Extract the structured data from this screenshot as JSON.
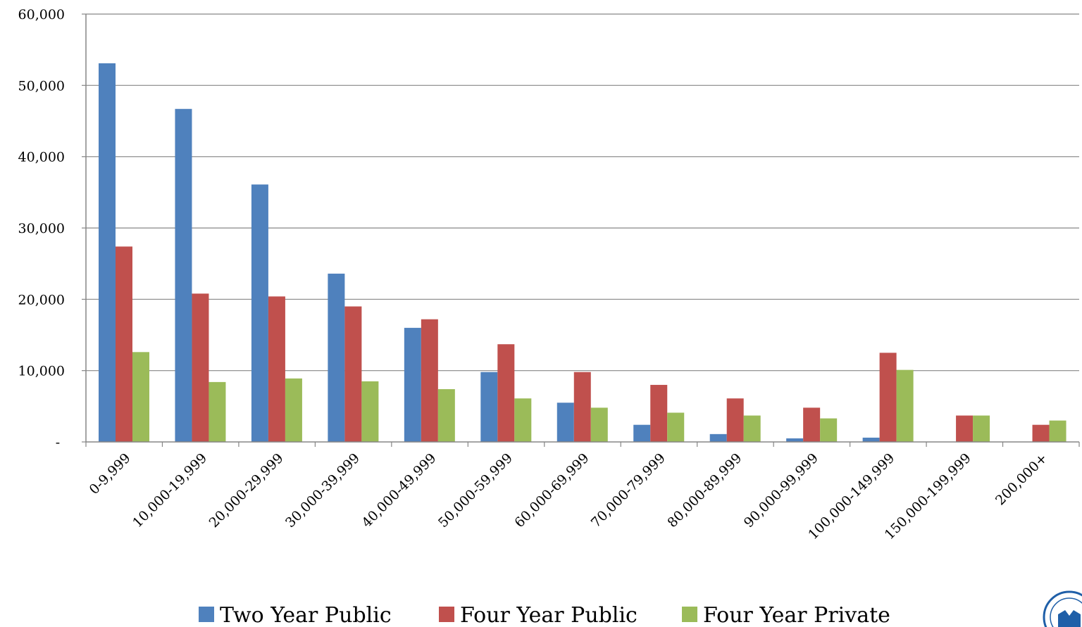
{
  "chart_data": {
    "type": "bar",
    "title": "",
    "xlabel": "",
    "ylabel": "",
    "ylim": [
      0,
      60000
    ],
    "yticks": [
      0,
      10000,
      20000,
      30000,
      40000,
      50000,
      60000
    ],
    "ytick_labels": [
      "-",
      "10,000",
      "20,000",
      "30,000",
      "40,000",
      "50,000",
      "60,000"
    ],
    "grid": true,
    "legend_position": "bottom",
    "categories": [
      "0-9,999",
      "10,000-19,999",
      "20,000-29,999",
      "30,000-39,999",
      "40,000-49,999",
      "50,000-59,999",
      "60,000-69,999",
      "70,000-79,999",
      "80,000-89,999",
      "90,000-99,999",
      "100,000-149,999",
      "150,000-199,999",
      "200,000+"
    ],
    "series": [
      {
        "name": "Two Year Public",
        "color": "#4f81bd",
        "values": [
          53100,
          46700,
          36100,
          23600,
          16000,
          9800,
          5500,
          2400,
          1100,
          500,
          600,
          0,
          0
        ]
      },
      {
        "name": "Four Year Public",
        "color": "#c0504d",
        "values": [
          27400,
          20800,
          20400,
          19000,
          17200,
          13700,
          9800,
          8000,
          6100,
          4800,
          12500,
          3700,
          2400
        ]
      },
      {
        "name": "Four Year Private",
        "color": "#9bbb59",
        "values": [
          12600,
          8400,
          8900,
          8500,
          7400,
          6100,
          4800,
          4100,
          3700,
          3300,
          10100,
          3700,
          3000
        ]
      }
    ]
  }
}
